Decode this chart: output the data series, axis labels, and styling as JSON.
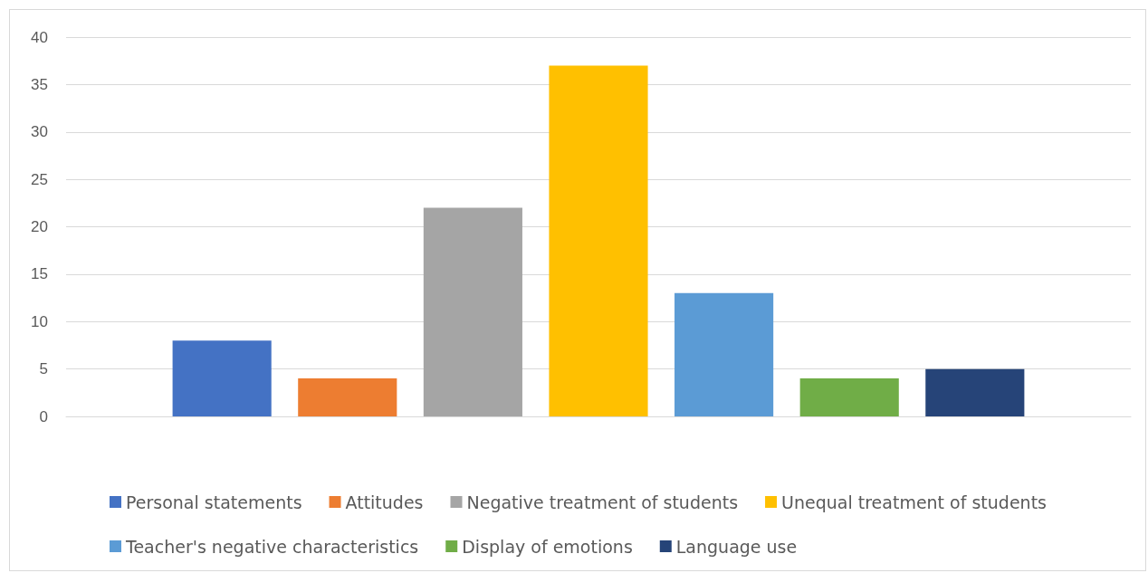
{
  "chart_data": {
    "type": "bar",
    "categories": [
      null
    ],
    "series": [
      {
        "name": "Personal statements",
        "color": "#4472c4",
        "values": [
          8
        ]
      },
      {
        "name": "Attitudes",
        "color": "#ed7d31",
        "values": [
          4
        ]
      },
      {
        "name": "Negative treatment of students",
        "color": "#a5a5a5",
        "values": [
          22
        ]
      },
      {
        "name": "Unequal treatment of students",
        "color": "#ffc000",
        "values": [
          37
        ]
      },
      {
        "name": "Teacher's negative characteristics",
        "color": "#5b9bd5",
        "values": [
          13
        ]
      },
      {
        "name": "Display of emotions",
        "color": "#70ad47",
        "values": [
          4
        ]
      },
      {
        "name": "Language use",
        "color": "#264478",
        "values": [
          5
        ]
      }
    ],
    "ylim": [
      0,
      40
    ],
    "yticks": [
      0,
      5,
      10,
      15,
      20,
      25,
      30,
      35,
      40
    ],
    "grid": "y",
    "legend": "bottom"
  }
}
